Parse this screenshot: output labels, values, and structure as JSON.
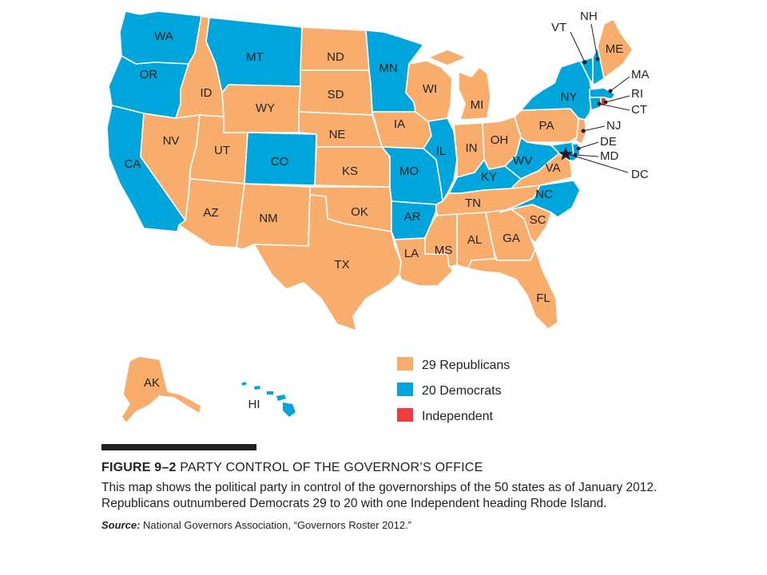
{
  "map": {
    "states": [
      {
        "abbr": "WA",
        "party": "Democrat"
      },
      {
        "abbr": "OR",
        "party": "Democrat"
      },
      {
        "abbr": "CA",
        "party": "Democrat"
      },
      {
        "abbr": "ID",
        "party": "Republican"
      },
      {
        "abbr": "NV",
        "party": "Republican"
      },
      {
        "abbr": "UT",
        "party": "Republican"
      },
      {
        "abbr": "AZ",
        "party": "Republican"
      },
      {
        "abbr": "MT",
        "party": "Democrat"
      },
      {
        "abbr": "WY",
        "party": "Republican"
      },
      {
        "abbr": "CO",
        "party": "Democrat"
      },
      {
        "abbr": "NM",
        "party": "Republican"
      },
      {
        "abbr": "ND",
        "party": "Republican"
      },
      {
        "abbr": "SD",
        "party": "Republican"
      },
      {
        "abbr": "NE",
        "party": "Republican"
      },
      {
        "abbr": "KS",
        "party": "Republican"
      },
      {
        "abbr": "OK",
        "party": "Republican"
      },
      {
        "abbr": "TX",
        "party": "Republican"
      },
      {
        "abbr": "MN",
        "party": "Democrat"
      },
      {
        "abbr": "IA",
        "party": "Republican"
      },
      {
        "abbr": "MO",
        "party": "Democrat"
      },
      {
        "abbr": "AR",
        "party": "Democrat"
      },
      {
        "abbr": "LA",
        "party": "Republican"
      },
      {
        "abbr": "WI",
        "party": "Republican"
      },
      {
        "abbr": "IL",
        "party": "Democrat"
      },
      {
        "abbr": "MI",
        "party": "Republican"
      },
      {
        "abbr": "IN",
        "party": "Republican"
      },
      {
        "abbr": "OH",
        "party": "Republican"
      },
      {
        "abbr": "KY",
        "party": "Democrat"
      },
      {
        "abbr": "TN",
        "party": "Republican"
      },
      {
        "abbr": "MS",
        "party": "Republican"
      },
      {
        "abbr": "AL",
        "party": "Republican"
      },
      {
        "abbr": "GA",
        "party": "Republican"
      },
      {
        "abbr": "FL",
        "party": "Republican"
      },
      {
        "abbr": "SC",
        "party": "Republican"
      },
      {
        "abbr": "NC",
        "party": "Democrat"
      },
      {
        "abbr": "VA",
        "party": "Republican"
      },
      {
        "abbr": "WV",
        "party": "Democrat"
      },
      {
        "abbr": "PA",
        "party": "Republican"
      },
      {
        "abbr": "NY",
        "party": "Democrat"
      },
      {
        "abbr": "VT",
        "party": "Democrat"
      },
      {
        "abbr": "NH",
        "party": "Democrat"
      },
      {
        "abbr": "ME",
        "party": "Republican"
      },
      {
        "abbr": "MA",
        "party": "Democrat"
      },
      {
        "abbr": "RI",
        "party": "Independent"
      },
      {
        "abbr": "CT",
        "party": "Democrat"
      },
      {
        "abbr": "NJ",
        "party": "Republican"
      },
      {
        "abbr": "DE",
        "party": "Democrat"
      },
      {
        "abbr": "MD",
        "party": "Democrat"
      },
      {
        "abbr": "DC",
        "party": "Capital"
      },
      {
        "abbr": "AK",
        "party": "Republican"
      },
      {
        "abbr": "HI",
        "party": "Democrat"
      }
    ],
    "colors": {
      "Republican": "#f8ad6d",
      "Democrat": "#00a5dc",
      "Independent": "#ef3e42"
    }
  },
  "legend": [
    {
      "label": "29 Republicans",
      "color": "#f8ad6d"
    },
    {
      "label": "20 Democrats",
      "color": "#00a5dc"
    },
    {
      "label": "Independent",
      "color": "#ef3e42"
    }
  ],
  "caption": {
    "figure_number": "FIGURE 9–2",
    "title": "PARTY CONTROL OF THE GOVERNOR’S OFFICE",
    "description": "This map shows the political party in control of the governorships of the 50 states as of January 2012. Republicans outnumbered Democrats 29 to 20 with one Independent heading Rhode Island.",
    "source_label": "Source:",
    "source_text": " National Governors Association, “Governors Roster 2012.”"
  }
}
